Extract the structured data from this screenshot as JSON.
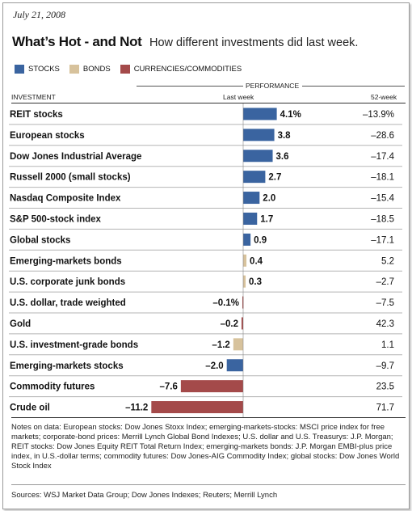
{
  "header": {
    "date": "July 21, 2008",
    "title": "What’s Hot - and Not",
    "subtitle": "How different investments did last week."
  },
  "legend": [
    {
      "label": "STOCKS",
      "color": "#3a64a0"
    },
    {
      "label": "BONDS",
      "color": "#d7c29c"
    },
    {
      "label": "CURRENCIES/COMMODITIES",
      "color": "#a44a4a"
    }
  ],
  "columns": {
    "investment": "INVESTMENT",
    "performance": "PERFORMANCE",
    "last_week": "Last week",
    "week52": "52-week"
  },
  "chart_data": {
    "type": "bar",
    "orientation": "horizontal",
    "xlabel": "Last week",
    "categories": [
      "REIT stocks",
      "European stocks",
      "Dow Jones Industrial Average",
      "Russell 2000 (small stocks)",
      "Nasdaq Composite Index",
      "S&P 500-stock index",
      "Global stocks",
      "Emerging-markets bonds",
      "U.S. corporate junk bonds",
      "U.S. dollar, trade weighted",
      "Gold",
      "U.S. investment-grade bonds",
      "Emerging-markets stocks",
      "Commodity futures",
      "Crude oil"
    ],
    "last_week": [
      4.1,
      3.8,
      3.6,
      2.7,
      2.0,
      1.7,
      0.9,
      0.4,
      0.3,
      -0.1,
      -0.2,
      -1.2,
      -2.0,
      -7.6,
      -11.2
    ],
    "last_week_labels": [
      "4.1%",
      "3.8",
      "3.6",
      "2.7",
      "2.0",
      "1.7",
      "0.9",
      "0.4",
      "0.3",
      "–0.1%",
      "–0.2",
      "–1.2",
      "–2.0",
      "–7.6",
      "–11.2"
    ],
    "week52_labels": [
      "–13.9%",
      "–28.6",
      "–17.4",
      "–18.1",
      "–15.4",
      "–18.5",
      "–17.1",
      "5.2",
      "–2.7",
      "–7.5",
      "42.3",
      "1.1",
      "–9.7",
      "23.5",
      "71.7"
    ],
    "groups": [
      "stocks",
      "stocks",
      "stocks",
      "stocks",
      "stocks",
      "stocks",
      "stocks",
      "bonds",
      "bonds",
      "currencies",
      "currencies",
      "bonds",
      "stocks",
      "currencies",
      "currencies"
    ],
    "group_colors": {
      "stocks": "#3a64a0",
      "bonds": "#d7c29c",
      "currencies": "#a44a4a"
    },
    "xlim": [
      -11.2,
      4.1
    ]
  },
  "notes": "Notes on data: European stocks: Dow Jones Stoxx Index; emerging-markets-stocks: MSCI price index for free markets; corporate-bond prices: Merrill Lynch Global Bond Indexes; U.S. dollar and U.S. Treasurys: J.P. Morgan; REIT stocks: Dow Jones Equity REIT Total Return Index; emerging-markets bonds: J.P. Morgan EMBI-plus price index, in U.S.-dollar terms; commodity futures: Dow Jones-AIG Commodity Index; global stocks: Dow Jones World Stock Index",
  "sources": "Sources: WSJ Market Data Group; Dow Jones Indexes; Reuters; Merrill Lynch"
}
